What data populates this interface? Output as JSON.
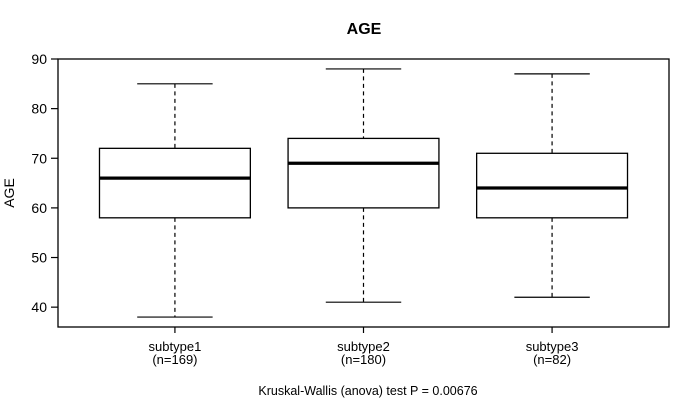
{
  "title": "AGE",
  "caption": "Kruskal-Wallis (anova) test P = 0.00676",
  "chart_data": {
    "type": "boxplot",
    "title": "AGE",
    "ylabel": "AGE",
    "xlabel": "",
    "caption": "Kruskal-Wallis (anova) test P = 0.00676",
    "categories": [
      "subtype1",
      "subtype2",
      "subtype3"
    ],
    "category_sublabels": [
      "(n=169)",
      "(n=180)",
      "(n=82)"
    ],
    "series": [
      {
        "name": "subtype1",
        "n": 169,
        "lower_whisker": 38,
        "q1": 58,
        "median": 66,
        "q3": 72,
        "upper_whisker": 85
      },
      {
        "name": "subtype2",
        "n": 180,
        "lower_whisker": 41,
        "q1": 60,
        "median": 69,
        "q3": 74,
        "upper_whisker": 88
      },
      {
        "name": "subtype3",
        "n": 82,
        "lower_whisker": 42,
        "q1": 58,
        "median": 64,
        "q3": 71,
        "upper_whisker": 87
      }
    ],
    "yticks": [
      40,
      50,
      60,
      70,
      80,
      90
    ],
    "ylim": [
      36,
      90
    ],
    "xlim": [
      0.38,
      3.62
    ],
    "box_width": 0.8,
    "cap_width": 0.4,
    "grid": false,
    "legend": null,
    "colors": {
      "line": "#000000",
      "box_fill": "#ffffff",
      "background": "#ffffff"
    }
  }
}
